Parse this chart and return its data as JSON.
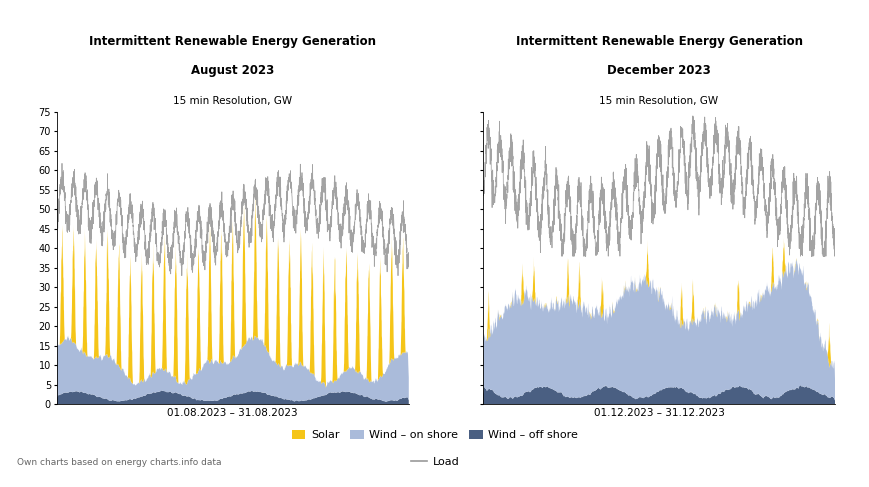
{
  "title_line1": "Intermittent Renewable Energy Generation",
  "title1_line2": "August 2023",
  "title2_line2": "December 2023",
  "subtitle": "15 min Resolution, GW",
  "xlabel1": "01.08.2023 – 31.08.2023",
  "xlabel2": "01.12.2023 – 31.12.2023",
  "ylim": [
    0,
    75
  ],
  "yticks": [
    0,
    5,
    10,
    15,
    20,
    25,
    30,
    35,
    40,
    45,
    50,
    55,
    60,
    65,
    70,
    75
  ],
  "color_solar": "#F5C518",
  "color_wind_on": "#AABBDA",
  "color_wind_off": "#4A5F82",
  "color_load": "#999999",
  "footnote": "Own charts based on energy charts.info data",
  "legend_solar": "Solar",
  "legend_wind_on": "Wind – on shore",
  "legend_wind_off": "Wind – off shore",
  "legend_load": "Load",
  "n_points": 2976
}
